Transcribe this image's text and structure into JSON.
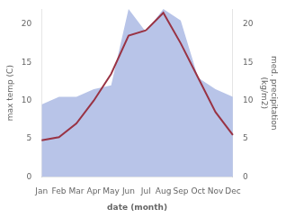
{
  "chart_data": {
    "type": "line",
    "xlabel": "date (month)",
    "ylabel": "max temp (C)",
    "y2label": "med. precipitation\n(kg/m2)",
    "categories": [
      "Jan",
      "Feb",
      "Mar",
      "Apr",
      "May",
      "Jun",
      "Jul",
      "Aug",
      "Sep",
      "Oct",
      "Nov",
      "Dec"
    ],
    "series": [
      {
        "type": "area",
        "axis": "y2",
        "color": "#b8c4e8",
        "values": [
          9.5,
          10.5,
          10.5,
          11.5,
          12.0,
          22.0,
          19.0,
          22.0,
          20.5,
          13.0,
          11.5,
          10.5
        ]
      },
      {
        "type": "line",
        "color": "#993344",
        "values": [
          4.8,
          5.2,
          7.0,
          10.0,
          13.5,
          18.5,
          19.2,
          21.5,
          17.5,
          13.0,
          8.5,
          5.5
        ]
      }
    ],
    "ylim": [
      0,
      22
    ],
    "yticks": [
      0,
      5,
      10,
      15,
      20
    ],
    "y2lim": [
      0,
      22
    ],
    "y2ticks": [
      0,
      5,
      10,
      15,
      20
    ],
    "grid": false
  }
}
